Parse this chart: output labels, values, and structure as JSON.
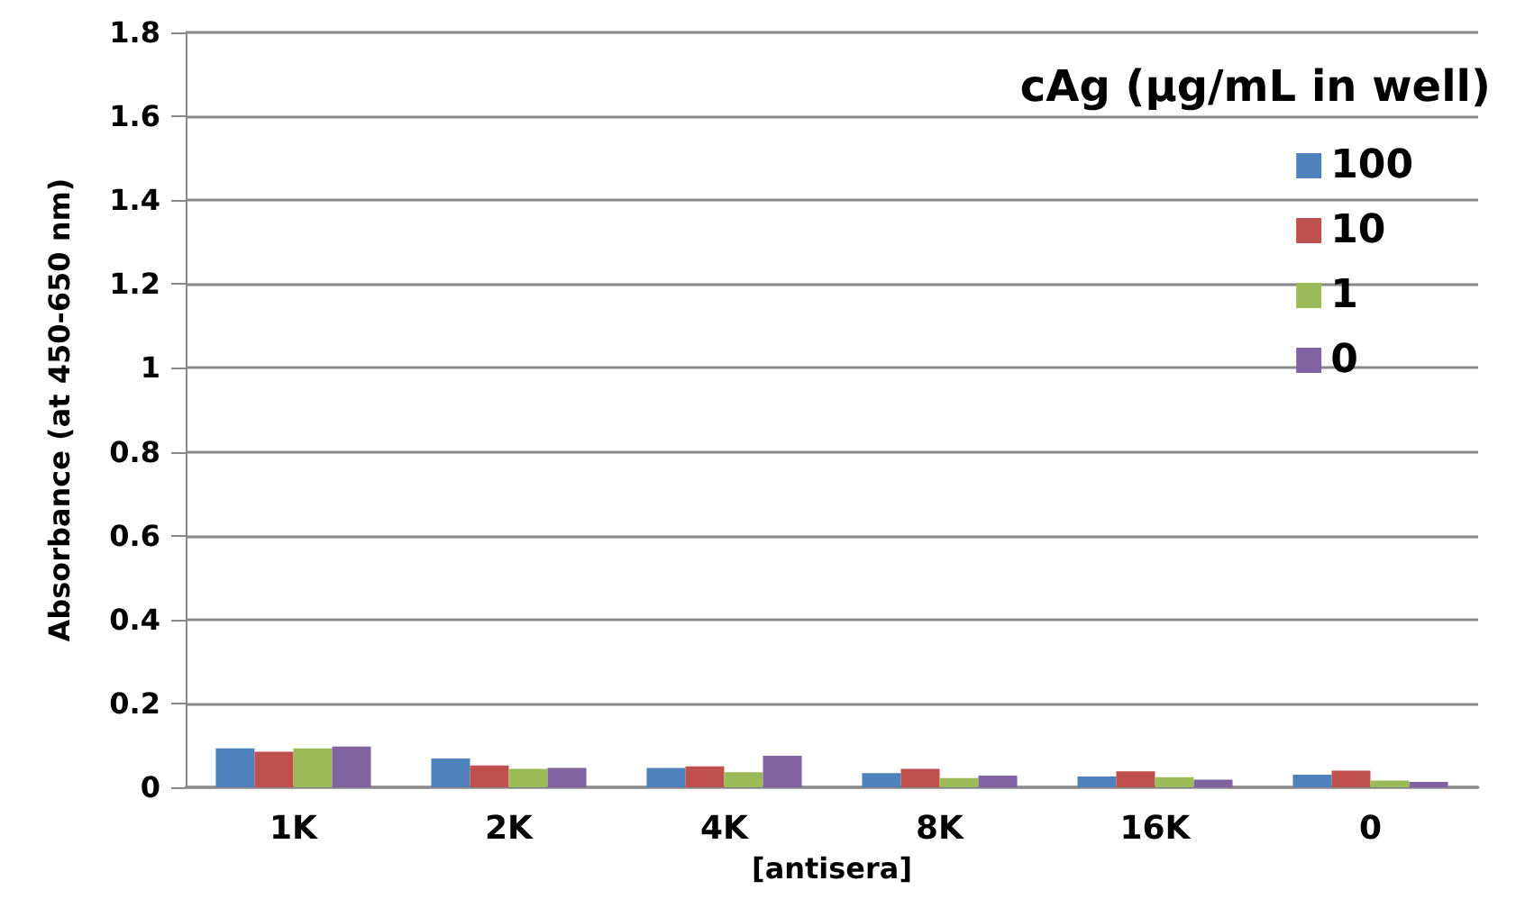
{
  "chart_data": {
    "type": "bar",
    "xlabel": "[antisera]",
    "ylabel": "Absorbance (at 450-650 nm)",
    "legend_title": "cAg (µg/mL in well)",
    "categories": [
      "1K",
      "2K",
      "4K",
      "8K",
      "16K",
      "0"
    ],
    "series": [
      {
        "name": "100",
        "color": "#4f81bd",
        "values": [
          0.093,
          0.069,
          0.046,
          0.034,
          0.026,
          0.03
        ]
      },
      {
        "name": "10",
        "color": "#c0504d",
        "values": [
          0.085,
          0.052,
          0.05,
          0.044,
          0.038,
          0.04
        ]
      },
      {
        "name": "1",
        "color": "#9bbb59",
        "values": [
          0.093,
          0.044,
          0.036,
          0.022,
          0.024,
          0.016
        ]
      },
      {
        "name": "0",
        "color": "#8064a2",
        "values": [
          0.097,
          0.046,
          0.075,
          0.028,
          0.018,
          0.013
        ]
      }
    ],
    "ylim": [
      0,
      1.8
    ],
    "yticks": [
      0,
      0.2,
      0.4,
      0.6,
      0.8,
      1,
      1.2,
      1.4,
      1.6,
      1.8
    ],
    "grid": "y",
    "legend": "top right"
  }
}
